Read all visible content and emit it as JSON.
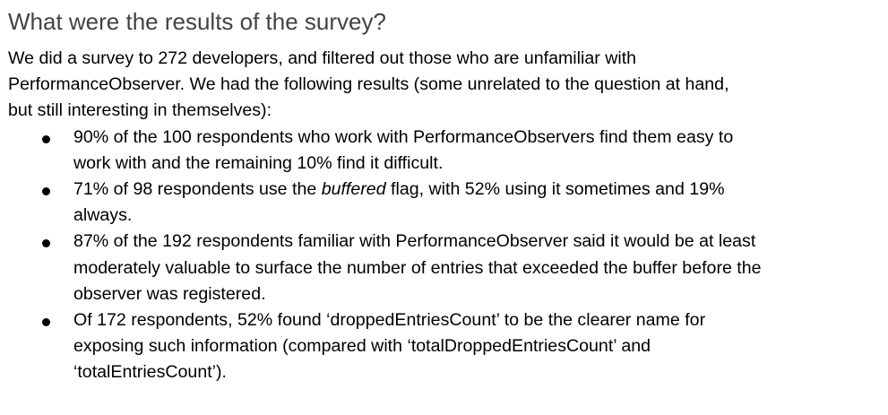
{
  "heading": "What were the results of the survey?",
  "intro": {
    "lines": [
      "We did a survey to 272 developers, and filtered out those who are unfamiliar with",
      "PerformanceObserver. We had the following results (some unrelated to the question at hand,",
      "but still interesting in themselves):"
    ]
  },
  "bullets": [
    {
      "lines": [
        "90% of the 100 respondents who work with PerformanceObservers find them easy to",
        "work with and the remaining 10% find it difficult."
      ]
    },
    {
      "line1_before": "71% of 98 respondents use the ",
      "line1_italic": "buffered",
      "line1_after": " flag, with 52% using it sometimes and 19%",
      "line2": "always."
    },
    {
      "lines": [
        "87% of the 192 respondents familiar with PerformanceObserver said it would be at least",
        "moderately valuable to surface the number of entries that exceeded the buffer before the",
        "observer was registered."
      ]
    },
    {
      "lines": [
        "Of 172 respondents, 52% found ‘droppedEntriesCount’ to be the clearer name for",
        "exposing such information (compared with ‘totalDroppedEntriesCount’ and",
        "‘totalEntriesCount’)."
      ]
    }
  ]
}
